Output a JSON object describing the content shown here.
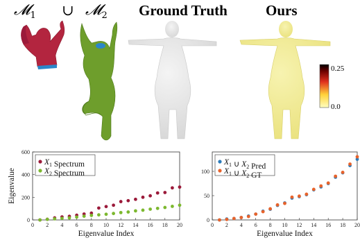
{
  "header": {
    "m1": "𝓜",
    "m1_sub": "1",
    "union": "∪",
    "m2": "𝓜",
    "m2_sub": "2",
    "ground_truth": "Ground Truth",
    "ours": "Ours"
  },
  "colorbar": {
    "max_label": "0.25",
    "min_label": "0.0"
  },
  "colors": {
    "spectrum1": "#9b1a3a",
    "spectrum2": "#7cb82f",
    "pred": "#2b7bba",
    "gt": "#e8632b",
    "body_red": "#b3253f",
    "body_green": "#6e9e2c",
    "body_gray": "#e6e6e6",
    "body_yellow": "#f1ec98"
  },
  "chart_data": [
    {
      "type": "scatter",
      "xlabel": "Eigenvalue Index",
      "ylabel": "Eigenvalue",
      "xlim": [
        0,
        20
      ],
      "ylim": [
        0,
        600
      ],
      "xticks": [
        "0",
        "2",
        "4",
        "6",
        "8",
        "10",
        "12",
        "14",
        "16",
        "18",
        "20"
      ],
      "yticks": [
        "0",
        "200",
        "400",
        "600"
      ],
      "legend_position": "top-left",
      "x": [
        1,
        2,
        3,
        4,
        5,
        6,
        7,
        8,
        9,
        10,
        11,
        12,
        13,
        14,
        15,
        16,
        17,
        18,
        19,
        20
      ],
      "series": [
        {
          "name": "X₁ Spectrum",
          "name_var": "X",
          "name_sub": "1",
          "name_rest": " Spectrum",
          "values": [
            0,
            6,
            18,
            27,
            32,
            42,
            52,
            60,
            105,
            118,
            130,
            162,
            170,
            182,
            200,
            213,
            238,
            242,
            283,
            290
          ]
        },
        {
          "name": "X₂ Spectrum",
          "name_var": "X",
          "name_sub": "2",
          "name_rest": " Spectrum",
          "values": [
            0,
            5,
            10,
            14,
            18,
            25,
            33,
            40,
            45,
            50,
            57,
            65,
            70,
            80,
            86,
            95,
            102,
            110,
            120,
            130
          ]
        }
      ]
    },
    {
      "type": "scatter",
      "xlabel": "Eigenvalue Index",
      "ylabel": "",
      "xlim": [
        0,
        20
      ],
      "ylim": [
        0,
        140
      ],
      "xticks": [
        "0",
        "2",
        "4",
        "6",
        "8",
        "10",
        "12",
        "14",
        "16",
        "18",
        "20"
      ],
      "yticks": [
        "0",
        "50",
        "100"
      ],
      "legend_position": "top-left",
      "x": [
        1,
        2,
        3,
        4,
        5,
        6,
        7,
        8,
        9,
        10,
        11,
        12,
        13,
        14,
        15,
        16,
        17,
        18,
        19,
        20
      ],
      "series": [
        {
          "name": "X₁ ∪ X₂ Pred",
          "name_var": "X",
          "name_sub": "1",
          "name_mid": " ∪ ",
          "name_var2": "X",
          "name_sub2": "2",
          "name_rest": " Pred",
          "values": [
            0,
            2,
            3,
            5,
            8,
            12,
            18,
            22,
            30,
            35,
            45,
            48,
            52,
            62,
            68,
            75,
            88,
            97,
            112,
            125
          ]
        },
        {
          "name": "X₁ ∪ X₂ GT",
          "name_var": "X",
          "name_sub": "1",
          "name_mid": " ∪ ",
          "name_var2": "X",
          "name_sub2": "2",
          "name_rest": " GT",
          "values": [
            0,
            1,
            3,
            5,
            7,
            12,
            17,
            23,
            31,
            34,
            47,
            49,
            53,
            63,
            70,
            76,
            90,
            98,
            115,
            130
          ]
        }
      ]
    }
  ]
}
